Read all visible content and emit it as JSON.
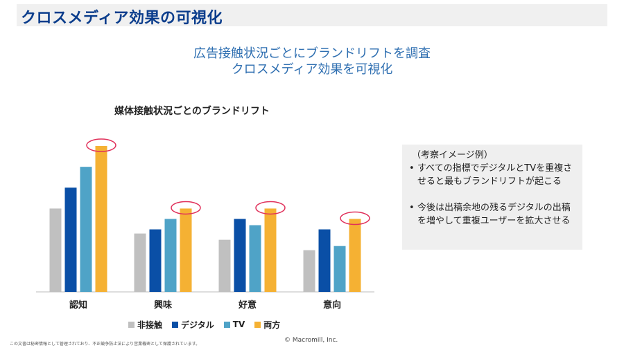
{
  "page": {
    "title": "クロスメディア効果の可視化",
    "headline_line1": "広告接触状況ごとにブランドリフトを調査",
    "headline_line2": "クロスメディア効果を可視化"
  },
  "chart_data": {
    "type": "bar",
    "title": "媒体接触状況ごとのブランドリフト",
    "categories": [
      "認知",
      "興味",
      "好意",
      "意向"
    ],
    "series": [
      {
        "name": "非接触",
        "color": "#c0c0c0",
        "values": [
          40,
          28,
          25,
          20
        ]
      },
      {
        "name": "デジタル",
        "color": "#0a4fa6",
        "values": [
          50,
          30,
          35,
          30
        ]
      },
      {
        "name": "TV",
        "color": "#4fa3c7",
        "values": [
          60,
          35,
          32,
          22
        ]
      },
      {
        "name": "両方",
        "color": "#f5b133",
        "values": [
          70,
          40,
          40,
          35
        ]
      }
    ],
    "ylim": [
      0,
      72
    ],
    "highlight_series": "両方",
    "highlight_color": "#e0305a",
    "legend_position": "bottom",
    "grid": false
  },
  "notes": {
    "heading": "（考察イメージ例）",
    "items": [
      "すべての指標でデジタルとTVを重複させると最もブランドリフトが起こる",
      "今後は出稿余地の残るデジタルの出稿を増やして重複ユーザーを拡大させる"
    ]
  },
  "footer": {
    "confidential": "この文書は秘密情報として管理されており、不正競争防止法により営業機密として保護されています。",
    "copyright": "© Macromill, Inc."
  }
}
